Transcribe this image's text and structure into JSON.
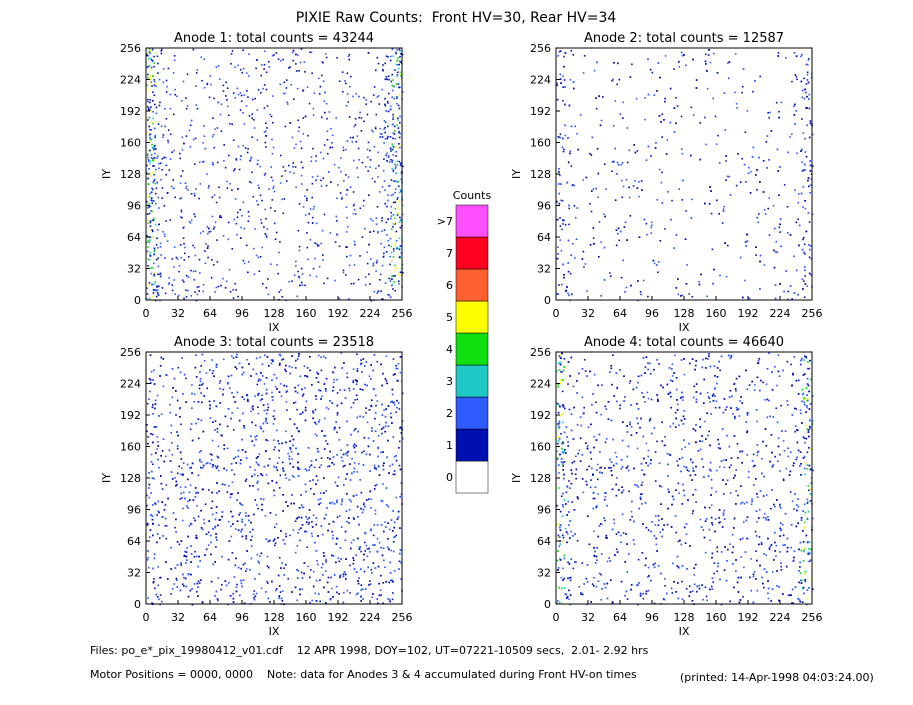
{
  "title": "PIXIE Raw Counts:  Front HV=30, Rear HV=34",
  "chart_data": [
    {
      "type": "heatmap",
      "title": "Anode 1: total counts = 43244",
      "xlabel": "IX",
      "ylabel": "IY",
      "xlim": [
        0,
        256
      ],
      "ylim": [
        0,
        256
      ],
      "xticks": [
        0,
        32,
        64,
        96,
        128,
        160,
        192,
        224,
        256
      ],
      "yticks": [
        0,
        32,
        64,
        96,
        128,
        160,
        192,
        224,
        256
      ]
    },
    {
      "type": "heatmap",
      "title": "Anode 2: total counts = 12587",
      "xlabel": "IX",
      "ylabel": "IY",
      "xlim": [
        0,
        256
      ],
      "ylim": [
        0,
        256
      ],
      "xticks": [
        0,
        32,
        64,
        96,
        128,
        160,
        192,
        224,
        256
      ],
      "yticks": [
        0,
        32,
        64,
        96,
        128,
        160,
        192,
        224,
        256
      ]
    },
    {
      "type": "heatmap",
      "title": "Anode 3: total counts = 23518",
      "xlabel": "IX",
      "ylabel": "IY",
      "xlim": [
        0,
        256
      ],
      "ylim": [
        0,
        256
      ],
      "xticks": [
        0,
        32,
        64,
        96,
        128,
        160,
        192,
        224,
        256
      ],
      "yticks": [
        0,
        32,
        64,
        96,
        128,
        160,
        192,
        224,
        256
      ]
    },
    {
      "type": "heatmap",
      "title": "Anode 4: total counts = 46640",
      "xlabel": "IX",
      "ylabel": "IY",
      "xlim": [
        0,
        256
      ],
      "ylim": [
        0,
        256
      ],
      "xticks": [
        0,
        32,
        64,
        96,
        128,
        160,
        192,
        224,
        256
      ],
      "yticks": [
        0,
        32,
        64,
        96,
        128,
        160,
        192,
        224,
        256
      ]
    }
  ],
  "colorbar": {
    "title": "Counts",
    "levels": [
      {
        "label": "0",
        "color": "#ffffff"
      },
      {
        "label": "1",
        "color": "#0010b0"
      },
      {
        "label": "2",
        "color": "#2f5cff"
      },
      {
        "label": "3",
        "color": "#20c8c8"
      },
      {
        "label": "4",
        "color": "#10e010"
      },
      {
        "label": "5",
        "color": "#ffff00"
      },
      {
        "label": "6",
        "color": "#ff6030"
      },
      {
        "label": "7",
        "color": "#ff0020"
      },
      {
        "label": ">7",
        "color": "#ff50ff"
      }
    ]
  },
  "footer": {
    "files": "Files: po_e*_pix_19980412_v01.cdf    12 APR 1998, DOY=102, UT=07221-10509 secs,  2.01- 2.92 hrs",
    "motor": "Motor Positions = 0000, 0000    Note: data for Anodes 3 & 4 accumulated during Front HV-on times",
    "printed": "(printed: 14-Apr-1998 04:03:24.00)"
  }
}
